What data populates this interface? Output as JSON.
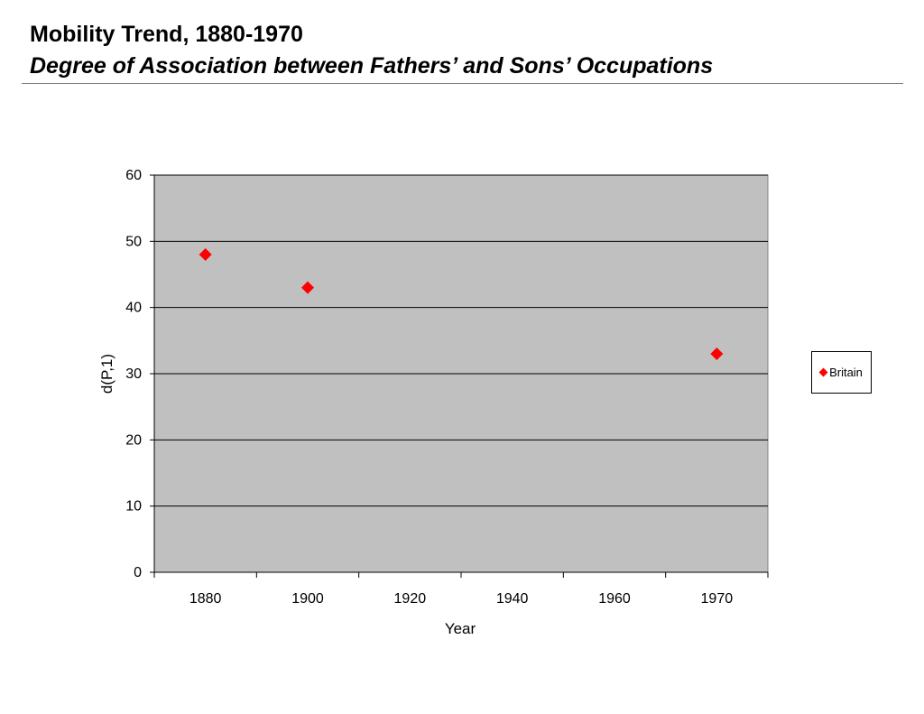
{
  "slide": {
    "title": "Mobility Trend, 1880-1970",
    "subtitle": "Degree of Association between Fathers’ and Sons’ Occupations"
  },
  "chart_data": {
    "type": "scatter",
    "xlabel": "Year",
    "ylabel": "d(P,1)",
    "x_ticks": [
      "1880",
      "1900",
      "1920",
      "1940",
      "1960",
      "1970"
    ],
    "y_ticks": [
      0,
      10,
      20,
      30,
      40,
      50,
      60
    ],
    "ylim": [
      0,
      60
    ],
    "grid": true,
    "background_color": "#c0c0c0",
    "legend_position": "right",
    "series": [
      {
        "name": "Britain",
        "marker": "diamond",
        "color": "#ff0000",
        "points": [
          {
            "x": "1880",
            "y": 48
          },
          {
            "x": "1900",
            "y": 43
          },
          {
            "x": "1970",
            "y": 33
          }
        ]
      }
    ]
  }
}
